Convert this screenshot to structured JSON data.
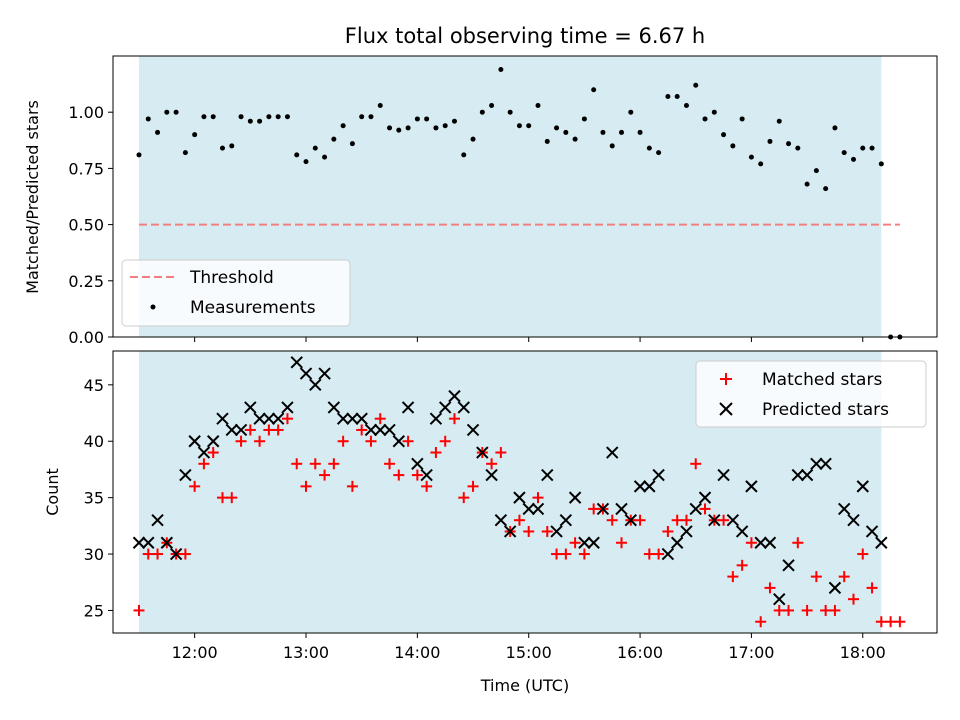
{
  "chart_data": [
    {
      "type": "scatter",
      "title": "Flux total observing time = 6.67 h",
      "ylabel": "Matched/Predicted stars",
      "ylim": [
        0,
        1.25
      ],
      "xlim": [
        "11:16",
        "18:40"
      ],
      "yticks": [
        "0.00",
        "0.25",
        "0.50",
        "0.75",
        "1.00"
      ],
      "shaded_span": [
        "11:30",
        "18:10"
      ],
      "shade_color": "#add8e6",
      "legend": "lower-left",
      "threshold": {
        "name": "Threshold",
        "y": 0.5,
        "x_range": [
          "11:30",
          "18:20"
        ],
        "color": "#f08080"
      },
      "series": [
        {
          "name": "Measurements",
          "color": "#000000",
          "x": [
            "11:30",
            "11:35",
            "11:40",
            "11:45",
            "11:50",
            "11:55",
            "12:00",
            "12:05",
            "12:10",
            "12:15",
            "12:20",
            "12:25",
            "12:30",
            "12:35",
            "12:40",
            "12:45",
            "12:50",
            "12:55",
            "13:00",
            "13:05",
            "13:10",
            "13:15",
            "13:20",
            "13:25",
            "13:30",
            "13:35",
            "13:40",
            "13:45",
            "13:50",
            "13:55",
            "14:00",
            "14:05",
            "14:10",
            "14:15",
            "14:20",
            "14:25",
            "14:30",
            "14:35",
            "14:40",
            "14:45",
            "14:50",
            "14:55",
            "15:00",
            "15:05",
            "15:10",
            "15:15",
            "15:20",
            "15:25",
            "15:30",
            "15:35",
            "15:40",
            "15:45",
            "15:50",
            "15:55",
            "16:00",
            "16:05",
            "16:10",
            "16:15",
            "16:20",
            "16:25",
            "16:30",
            "16:35",
            "16:40",
            "16:45",
            "16:50",
            "16:55",
            "17:00",
            "17:05",
            "17:10",
            "17:15",
            "17:20",
            "17:25",
            "17:30",
            "17:35",
            "17:40",
            "17:45",
            "17:50",
            "17:55",
            "18:00",
            "18:05",
            "18:10",
            "18:15",
            "18:20"
          ],
          "values": [
            0.81,
            0.97,
            0.91,
            1.0,
            1.0,
            0.82,
            0.9,
            0.98,
            0.98,
            0.84,
            0.85,
            0.98,
            0.96,
            0.96,
            0.98,
            0.98,
            0.98,
            0.81,
            0.78,
            0.84,
            0.8,
            0.88,
            0.94,
            0.86,
            0.98,
            0.98,
            1.03,
            0.93,
            0.92,
            0.93,
            0.97,
            0.97,
            0.93,
            0.94,
            0.96,
            0.81,
            0.88,
            1.0,
            1.03,
            1.19,
            1.0,
            0.94,
            0.94,
            1.03,
            0.87,
            0.93,
            0.91,
            0.88,
            0.97,
            1.1,
            0.91,
            0.85,
            0.91,
            1.0,
            0.91,
            0.84,
            0.82,
            1.07,
            1.07,
            1.03,
            1.12,
            0.97,
            1.0,
            0.9,
            0.85,
            0.97,
            0.8,
            0.77,
            0.87,
            0.96,
            0.86,
            0.84,
            0.68,
            0.74,
            0.66,
            0.93,
            0.82,
            0.79,
            0.84,
            0.84,
            0.77,
            0.0,
            0.0
          ]
        }
      ]
    },
    {
      "type": "scatter",
      "xlabel": "Time (UTC)",
      "ylabel": "Count",
      "ylim": [
        23,
        48
      ],
      "xlim": [
        "11:16",
        "18:40"
      ],
      "xticks": [
        "12:00",
        "13:00",
        "14:00",
        "15:00",
        "16:00",
        "17:00",
        "18:00"
      ],
      "yticks": [
        "25",
        "30",
        "35",
        "40",
        "45"
      ],
      "shaded_span": [
        "11:30",
        "18:10"
      ],
      "shade_color": "#add8e6",
      "legend": "upper-right",
      "series": [
        {
          "name": "Matched stars",
          "marker": "+",
          "color": "#ff0000",
          "x": [
            "11:30",
            "11:35",
            "11:40",
            "11:45",
            "11:50",
            "11:55",
            "12:00",
            "12:05",
            "12:10",
            "12:15",
            "12:20",
            "12:25",
            "12:30",
            "12:35",
            "12:40",
            "12:45",
            "12:50",
            "12:55",
            "13:00",
            "13:05",
            "13:10",
            "13:15",
            "13:20",
            "13:25",
            "13:30",
            "13:35",
            "13:40",
            "13:45",
            "13:50",
            "13:55",
            "14:00",
            "14:05",
            "14:10",
            "14:15",
            "14:20",
            "14:25",
            "14:30",
            "14:35",
            "14:40",
            "14:45",
            "14:50",
            "14:55",
            "15:00",
            "15:05",
            "15:10",
            "15:15",
            "15:20",
            "15:25",
            "15:30",
            "15:35",
            "15:40",
            "15:45",
            "15:50",
            "15:55",
            "16:00",
            "16:05",
            "16:10",
            "16:15",
            "16:20",
            "16:25",
            "16:30",
            "16:35",
            "16:40",
            "16:45",
            "16:50",
            "16:55",
            "17:00",
            "17:05",
            "17:10",
            "17:15",
            "17:20",
            "17:25",
            "17:30",
            "17:35",
            "17:40",
            "17:45",
            "17:50",
            "17:55",
            "18:00",
            "18:05",
            "18:10",
            "18:15",
            "18:20"
          ],
          "values": [
            25,
            30,
            30,
            31,
            30,
            30,
            36,
            38,
            39,
            35,
            35,
            40,
            41,
            40,
            41,
            41,
            42,
            38,
            36,
            38,
            37,
            38,
            40,
            36,
            41,
            40,
            42,
            38,
            37,
            40,
            37,
            36,
            39,
            40,
            42,
            35,
            36,
            39,
            38,
            39,
            32,
            33,
            32,
            35,
            32,
            30,
            30,
            31,
            30,
            34,
            34,
            33,
            31,
            33,
            33,
            30,
            30,
            32,
            33,
            33,
            38,
            34,
            33,
            33,
            28,
            29,
            31,
            24,
            27,
            25,
            25,
            31,
            25,
            28,
            25,
            25,
            28,
            26,
            30,
            27,
            24,
            24,
            24
          ]
        },
        {
          "name": "Predicted stars",
          "marker": "x",
          "color": "#000000",
          "x": [
            "11:30",
            "11:35",
            "11:40",
            "11:45",
            "11:50",
            "11:55",
            "12:00",
            "12:05",
            "12:10",
            "12:15",
            "12:20",
            "12:25",
            "12:30",
            "12:35",
            "12:40",
            "12:45",
            "12:50",
            "12:55",
            "13:00",
            "13:05",
            "13:10",
            "13:15",
            "13:20",
            "13:25",
            "13:30",
            "13:35",
            "13:40",
            "13:45",
            "13:50",
            "13:55",
            "14:00",
            "14:05",
            "14:10",
            "14:15",
            "14:20",
            "14:25",
            "14:30",
            "14:35",
            "14:40",
            "14:45",
            "14:50",
            "14:55",
            "15:00",
            "15:05",
            "15:10",
            "15:15",
            "15:20",
            "15:25",
            "15:30",
            "15:35",
            "15:40",
            "15:45",
            "15:50",
            "15:55",
            "16:00",
            "16:05",
            "16:10",
            "16:15",
            "16:20",
            "16:25",
            "16:30",
            "16:35",
            "16:40",
            "16:45",
            "16:50",
            "16:55",
            "17:00",
            "17:05",
            "17:10",
            "17:15",
            "17:20",
            "17:25",
            "17:30",
            "17:35",
            "17:40",
            "17:45",
            "17:50",
            "17:55",
            "18:00",
            "18:05",
            "18:10"
          ],
          "values": [
            31,
            31,
            33,
            31,
            30,
            37,
            40,
            39,
            40,
            42,
            41,
            41,
            43,
            42,
            42,
            42,
            43,
            47,
            46,
            45,
            46,
            43,
            42,
            42,
            42,
            41,
            41,
            41,
            40,
            43,
            38,
            37,
            42,
            43,
            44,
            43,
            41,
            39,
            37,
            33,
            32,
            35,
            34,
            34,
            37,
            32,
            33,
            35,
            31,
            31,
            34,
            39,
            34,
            33,
            36,
            36,
            37,
            30,
            31,
            32,
            34,
            35,
            33,
            37,
            33,
            32,
            36,
            31,
            31,
            26,
            29,
            37,
            37,
            38,
            38,
            27,
            34,
            33,
            36,
            32,
            31
          ]
        }
      ]
    }
  ]
}
